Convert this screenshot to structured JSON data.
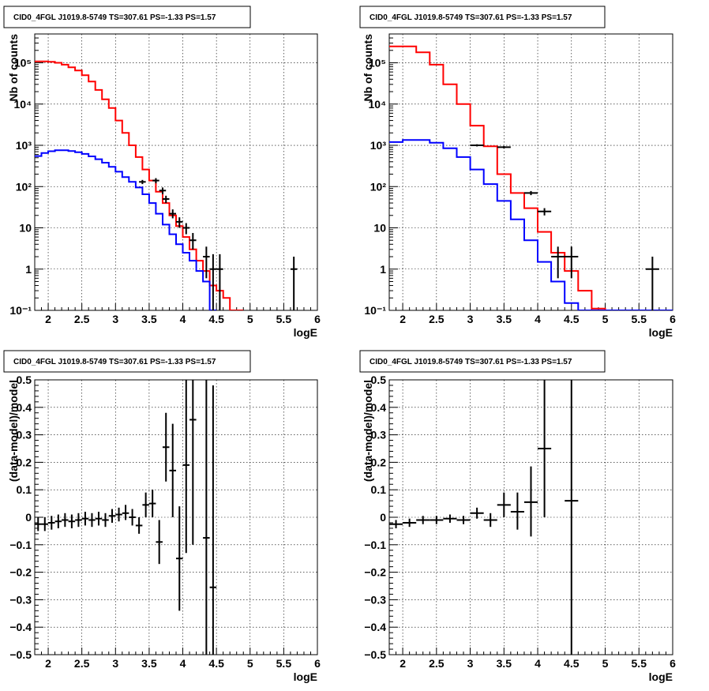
{
  "chart_data": [
    {
      "panel": "top-left",
      "type": "line",
      "title": "CID0_4FGL J1019.8-5749 TS=307.61 PS=-1.33 PS=1.57",
      "xlabel": "logE",
      "ylabel": "Nb of counts",
      "xlim": [
        1.8,
        6.0
      ],
      "ylim": [
        0.1,
        500000
      ],
      "ylog": true,
      "grid": true,
      "x_ticks": [
        2,
        2.5,
        3,
        3.5,
        4,
        4.5,
        5,
        5.5,
        6
      ],
      "x_tick_labels": [
        "2",
        "2.5",
        "3",
        "3.5",
        "4",
        "4.5",
        "5",
        "5.5",
        "6"
      ],
      "y_ticks": [
        0.1,
        1,
        10,
        100,
        1000,
        10000,
        100000
      ],
      "y_tick_labels": [
        "10⁻¹",
        "1",
        "10",
        "10²",
        "10³",
        "10⁴",
        "10⁵"
      ],
      "series": [
        {
          "kind": "step",
          "color": "#ff0000",
          "edges": [
            1.8,
            1.9,
            2.0,
            2.1,
            2.2,
            2.3,
            2.4,
            2.5,
            2.6,
            2.7,
            2.8,
            2.9,
            3.0,
            3.1,
            3.2,
            3.3,
            3.4,
            3.5,
            3.6,
            3.7,
            3.8,
            3.9,
            4.0,
            4.1,
            4.2,
            4.3,
            4.4,
            4.5,
            4.6,
            4.7,
            4.8,
            4.9
          ],
          "values": [
            108000,
            108000,
            106000,
            100000,
            90000,
            78000,
            65000,
            50000,
            35000,
            22000,
            13000,
            8000,
            4000,
            2000,
            1000,
            520,
            260,
            140,
            75,
            40,
            20,
            11,
            6,
            3,
            1.6,
            0.9,
            0.4,
            0.3,
            0.2,
            0.1,
            0.1
          ]
        },
        {
          "kind": "step",
          "color": "#0000ff",
          "edges": [
            1.8,
            1.9,
            2.0,
            2.1,
            2.2,
            2.3,
            2.4,
            2.5,
            2.6,
            2.7,
            2.8,
            2.9,
            3.0,
            3.1,
            3.2,
            3.3,
            3.4,
            3.5,
            3.6,
            3.7,
            3.8,
            3.9,
            4.0,
            4.1,
            4.2,
            4.3,
            4.4,
            4.5
          ],
          "values": [
            550,
            650,
            720,
            760,
            760,
            730,
            680,
            620,
            540,
            460,
            380,
            300,
            230,
            170,
            130,
            95,
            65,
            40,
            22,
            12,
            7,
            4,
            2.5,
            1.6,
            0.9,
            0.5,
            0.1
          ]
        },
        {
          "kind": "points",
          "color": "#000000",
          "points": [
            {
              "x": 3.4,
              "y": 130,
              "xerr": 0.05,
              "ylo": 115,
              "yhi": 145
            },
            {
              "x": 3.6,
              "y": 140,
              "xerr": 0.05,
              "ylo": 120,
              "yhi": 160
            },
            {
              "x": 3.7,
              "y": 80,
              "xerr": 0.05,
              "ylo": 65,
              "yhi": 95
            },
            {
              "x": 3.75,
              "y": 50,
              "xerr": 0.05,
              "ylo": 40,
              "yhi": 60
            },
            {
              "x": 3.85,
              "y": 22,
              "xerr": 0.05,
              "ylo": 17,
              "yhi": 28
            },
            {
              "x": 3.95,
              "y": 14,
              "xerr": 0.05,
              "ylo": 10,
              "yhi": 18
            },
            {
              "x": 4.05,
              "y": 10,
              "xerr": 0.05,
              "ylo": 7,
              "yhi": 13
            },
            {
              "x": 4.15,
              "y": 5,
              "xerr": 0.05,
              "ylo": 3,
              "yhi": 7.5
            },
            {
              "x": 4.35,
              "y": 2,
              "xerr": 0.05,
              "ylo": 0.6,
              "yhi": 3.5
            },
            {
              "x": 4.45,
              "y": 1,
              "xerr": 0.05,
              "ylo": 0.1,
              "yhi": 2.3
            },
            {
              "x": 4.55,
              "y": 1,
              "xerr": 0.05,
              "ylo": 0.1,
              "yhi": 2.3
            },
            {
              "x": 5.65,
              "y": 1,
              "xerr": 0.05,
              "ylo": 0.1,
              "yhi": 2.0
            }
          ]
        }
      ]
    },
    {
      "panel": "top-right",
      "type": "line",
      "title": "CID0_4FGL J1019.8-5749 TS=307.61 PS=-1.33 PS=1.57",
      "xlabel": "logE",
      "ylabel": "Nb of counts",
      "xlim": [
        1.8,
        6.0
      ],
      "ylim": [
        0.1,
        500000
      ],
      "ylog": true,
      "grid": true,
      "x_ticks": [
        2,
        2.5,
        3,
        3.5,
        4,
        4.5,
        5,
        5.5,
        6
      ],
      "x_tick_labels": [
        "2",
        "2.5",
        "3",
        "3.5",
        "4",
        "4.5",
        "5",
        "5.5",
        "6"
      ],
      "y_ticks": [
        0.1,
        1,
        10,
        100,
        1000,
        10000,
        100000
      ],
      "y_tick_labels": [
        "10⁻¹",
        "1",
        "10",
        "10²",
        "10³",
        "10⁴",
        "10⁵"
      ],
      "series": [
        {
          "kind": "step",
          "color": "#ff0000",
          "edges": [
            1.8,
            2.0,
            2.2,
            2.4,
            2.6,
            2.8,
            3.0,
            3.2,
            3.4,
            3.6,
            3.8,
            4.0,
            4.2,
            4.4,
            4.6,
            4.8,
            5.0,
            5.2,
            5.4,
            5.6,
            5.8,
            6.0
          ],
          "values": [
            250000,
            250000,
            180000,
            90000,
            30000,
            10000,
            3000,
            950,
            200,
            70,
            30,
            8,
            2.5,
            0.9,
            0.3,
            0.11,
            0.1,
            0.1,
            0.1,
            0.1,
            0.1
          ]
        },
        {
          "kind": "step",
          "color": "#0000ff",
          "edges": [
            1.8,
            2.0,
            2.2,
            2.4,
            2.6,
            2.8,
            3.0,
            3.2,
            3.4,
            3.6,
            3.8,
            4.0,
            4.2,
            4.4,
            4.6,
            6.0
          ],
          "values": [
            1200,
            1350,
            1350,
            1150,
            850,
            520,
            260,
            115,
            45,
            16,
            5,
            1.5,
            0.5,
            0.15,
            0.1
          ]
        },
        {
          "kind": "points",
          "color": "#000000",
          "points": [
            {
              "x": 3.1,
              "y": 1000,
              "xerr": 0.1,
              "ylo": 940,
              "yhi": 1060
            },
            {
              "x": 3.5,
              "y": 900,
              "xerr": 0.1,
              "ylo": 840,
              "yhi": 960
            },
            {
              "x": 3.9,
              "y": 70,
              "xerr": 0.1,
              "ylo": 62,
              "yhi": 78
            },
            {
              "x": 4.1,
              "y": 25,
              "xerr": 0.1,
              "ylo": 20,
              "yhi": 30
            },
            {
              "x": 4.3,
              "y": 2,
              "xerr": 0.1,
              "ylo": 0.6,
              "yhi": 3.5
            },
            {
              "x": 4.5,
              "y": 2,
              "xerr": 0.1,
              "ylo": 0.6,
              "yhi": 3.5
            },
            {
              "x": 5.7,
              "y": 1,
              "xerr": 0.1,
              "ylo": 0.1,
              "yhi": 2.0
            }
          ]
        }
      ]
    },
    {
      "panel": "bottom-left",
      "type": "scatter",
      "title": "CID0_4FGL J1019.8-5749 TS=307.61 PS=-1.33 PS=1.57",
      "xlabel": "logE",
      "ylabel": "(data-model)/model",
      "xlim": [
        1.8,
        6.0
      ],
      "ylim": [
        -0.5,
        0.5
      ],
      "ylog": false,
      "grid": true,
      "x_ticks": [
        2,
        2.5,
        3,
        3.5,
        4,
        4.5,
        5,
        5.5,
        6
      ],
      "x_tick_labels": [
        "2",
        "2.5",
        "3",
        "3.5",
        "4",
        "4.5",
        "5",
        "5.5",
        "6"
      ],
      "y_ticks": [
        -0.5,
        -0.4,
        -0.3,
        -0.2,
        -0.1,
        0,
        0.1,
        0.2,
        0.3,
        0.4,
        0.5
      ],
      "y_tick_labels": [
        "−0.5",
        "−0.4",
        "−0.3",
        "−0.2",
        "−0.1",
        "0",
        "0.1",
        "0.2",
        "0.3",
        "0.4",
        "0.5"
      ],
      "series": [
        {
          "kind": "points",
          "color": "#000000",
          "points": [
            {
              "x": 1.85,
              "y": -0.025,
              "xerr": 0.05,
              "ylo": -0.05,
              "yhi": 0.0
            },
            {
              "x": 1.95,
              "y": -0.025,
              "xerr": 0.05,
              "ylo": -0.05,
              "yhi": 0.0
            },
            {
              "x": 2.05,
              "y": -0.02,
              "xerr": 0.05,
              "ylo": -0.045,
              "yhi": 0.005
            },
            {
              "x": 2.15,
              "y": -0.015,
              "xerr": 0.05,
              "ylo": -0.04,
              "yhi": 0.01
            },
            {
              "x": 2.25,
              "y": -0.01,
              "xerr": 0.05,
              "ylo": -0.035,
              "yhi": 0.015
            },
            {
              "x": 2.35,
              "y": -0.015,
              "xerr": 0.05,
              "ylo": -0.04,
              "yhi": 0.01
            },
            {
              "x": 2.45,
              "y": -0.01,
              "xerr": 0.05,
              "ylo": -0.035,
              "yhi": 0.015
            },
            {
              "x": 2.55,
              "y": -0.005,
              "xerr": 0.05,
              "ylo": -0.03,
              "yhi": 0.02
            },
            {
              "x": 2.65,
              "y": -0.01,
              "xerr": 0.05,
              "ylo": -0.035,
              "yhi": 0.015
            },
            {
              "x": 2.75,
              "y": -0.005,
              "xerr": 0.05,
              "ylo": -0.03,
              "yhi": 0.02
            },
            {
              "x": 2.85,
              "y": -0.01,
              "xerr": 0.05,
              "ylo": -0.035,
              "yhi": 0.015
            },
            {
              "x": 2.95,
              "y": 0.005,
              "xerr": 0.05,
              "ylo": -0.02,
              "yhi": 0.03
            },
            {
              "x": 3.05,
              "y": 0.01,
              "xerr": 0.05,
              "ylo": -0.015,
              "yhi": 0.035
            },
            {
              "x": 3.15,
              "y": 0.015,
              "xerr": 0.05,
              "ylo": -0.01,
              "yhi": 0.045
            },
            {
              "x": 3.25,
              "y": 0.0,
              "xerr": 0.05,
              "ylo": -0.03,
              "yhi": 0.03
            },
            {
              "x": 3.35,
              "y": -0.03,
              "xerr": 0.05,
              "ylo": -0.06,
              "yhi": 0.0
            },
            {
              "x": 3.45,
              "y": 0.045,
              "xerr": 0.05,
              "ylo": 0.0,
              "yhi": 0.09
            },
            {
              "x": 3.55,
              "y": 0.05,
              "xerr": 0.05,
              "ylo": 0.0,
              "yhi": 0.1
            },
            {
              "x": 3.65,
              "y": -0.09,
              "xerr": 0.05,
              "ylo": -0.17,
              "yhi": -0.01
            },
            {
              "x": 3.75,
              "y": 0.255,
              "xerr": 0.05,
              "ylo": 0.13,
              "yhi": 0.38
            },
            {
              "x": 3.85,
              "y": 0.17,
              "xerr": 0.05,
              "ylo": 0.0,
              "yhi": 0.34
            },
            {
              "x": 3.95,
              "y": -0.15,
              "xerr": 0.05,
              "ylo": -0.34,
              "yhi": 0.04
            },
            {
              "x": 4.05,
              "y": 0.19,
              "xerr": 0.05,
              "ylo": -0.13,
              "yhi": 0.5
            },
            {
              "x": 4.15,
              "y": 0.355,
              "xerr": 0.05,
              "ylo": -0.1,
              "yhi": 0.5
            },
            {
              "x": 4.35,
              "y": -0.075,
              "xerr": 0.05,
              "ylo": -0.5,
              "yhi": 0.5
            },
            {
              "x": 4.45,
              "y": -0.255,
              "xerr": 0.05,
              "ylo": -0.5,
              "yhi": 0.48
            }
          ]
        }
      ]
    },
    {
      "panel": "bottom-right",
      "type": "scatter",
      "title": "CID0_4FGL J1019.8-5749 TS=307.61 PS=-1.33 PS=1.57",
      "xlabel": "logE",
      "ylabel": "(data-model)/model",
      "xlim": [
        1.8,
        6.0
      ],
      "ylim": [
        -0.5,
        0.5
      ],
      "ylog": false,
      "grid": true,
      "x_ticks": [
        2,
        2.5,
        3,
        3.5,
        4,
        4.5,
        5,
        5.5,
        6
      ],
      "x_tick_labels": [
        "2",
        "2.5",
        "3",
        "3.5",
        "4",
        "4.5",
        "5",
        "5.5",
        "6"
      ],
      "y_ticks": [
        -0.5,
        -0.4,
        -0.3,
        -0.2,
        -0.1,
        0,
        0.1,
        0.2,
        0.3,
        0.4,
        0.5
      ],
      "y_tick_labels": [
        "−0.5",
        "−0.4",
        "−0.3",
        "−0.2",
        "−0.1",
        "0",
        "0.1",
        "0.2",
        "0.3",
        "0.4",
        "0.5"
      ],
      "series": [
        {
          "kind": "points",
          "color": "#000000",
          "points": [
            {
              "x": 1.9,
              "y": -0.025,
              "xerr": 0.1,
              "ylo": -0.04,
              "yhi": -0.01
            },
            {
              "x": 2.1,
              "y": -0.02,
              "xerr": 0.1,
              "ylo": -0.035,
              "yhi": -0.005
            },
            {
              "x": 2.3,
              "y": -0.01,
              "xerr": 0.1,
              "ylo": -0.025,
              "yhi": 0.005
            },
            {
              "x": 2.5,
              "y": -0.01,
              "xerr": 0.1,
              "ylo": -0.025,
              "yhi": 0.005
            },
            {
              "x": 2.7,
              "y": -0.005,
              "xerr": 0.1,
              "ylo": -0.02,
              "yhi": 0.01
            },
            {
              "x": 2.9,
              "y": -0.01,
              "xerr": 0.1,
              "ylo": -0.025,
              "yhi": 0.005
            },
            {
              "x": 3.1,
              "y": 0.015,
              "xerr": 0.1,
              "ylo": -0.005,
              "yhi": 0.035
            },
            {
              "x": 3.3,
              "y": -0.01,
              "xerr": 0.1,
              "ylo": -0.035,
              "yhi": 0.015
            },
            {
              "x": 3.5,
              "y": 0.045,
              "xerr": 0.1,
              "ylo": 0.0,
              "yhi": 0.09
            },
            {
              "x": 3.7,
              "y": 0.02,
              "xerr": 0.1,
              "ylo": -0.045,
              "yhi": 0.09
            },
            {
              "x": 3.9,
              "y": 0.055,
              "xerr": 0.1,
              "ylo": -0.07,
              "yhi": 0.185
            },
            {
              "x": 4.1,
              "y": 0.25,
              "xerr": 0.1,
              "ylo": 0.0,
              "yhi": 0.5
            },
            {
              "x": 4.5,
              "y": 0.06,
              "xerr": 0.1,
              "ylo": -0.5,
              "yhi": 0.5
            }
          ]
        }
      ]
    }
  ]
}
